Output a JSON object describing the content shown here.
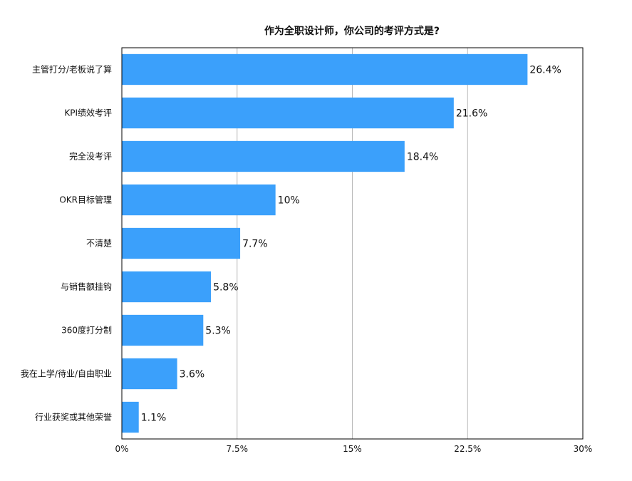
{
  "chart_data": {
    "type": "bar",
    "orientation": "horizontal",
    "title": "作为全职设计师，你公司的考评方式是?",
    "xlabel": "",
    "ylabel": "",
    "categories": [
      "主管打分/老板说了算",
      "KPI绩效考评",
      "完全没考评",
      "OKR目标管理",
      "不清楚",
      "与销售额挂钩",
      "360度打分制",
      "我在上学/待业/自由职业",
      "行业获奖或其他荣誉"
    ],
    "values": [
      26.4,
      21.6,
      18.4,
      10,
      7.7,
      5.8,
      5.3,
      3.6,
      1.1
    ],
    "data_labels": [
      "26.4%",
      "21.6%",
      "18.4%",
      "10%",
      "7.7%",
      "5.8%",
      "5.3%",
      "3.6%",
      "1.1%"
    ],
    "xlim": [
      0,
      30
    ],
    "x_ticks": [
      0,
      7.5,
      15,
      22.5,
      30
    ],
    "x_tick_labels": [
      "0%",
      "7.5%",
      "15%",
      "22.5%",
      "30%"
    ],
    "grid": "vertical",
    "legend": "none",
    "bar_color": "#3ba0fb",
    "grid_color": "#b8b8b8",
    "axis_color": "#000000"
  }
}
